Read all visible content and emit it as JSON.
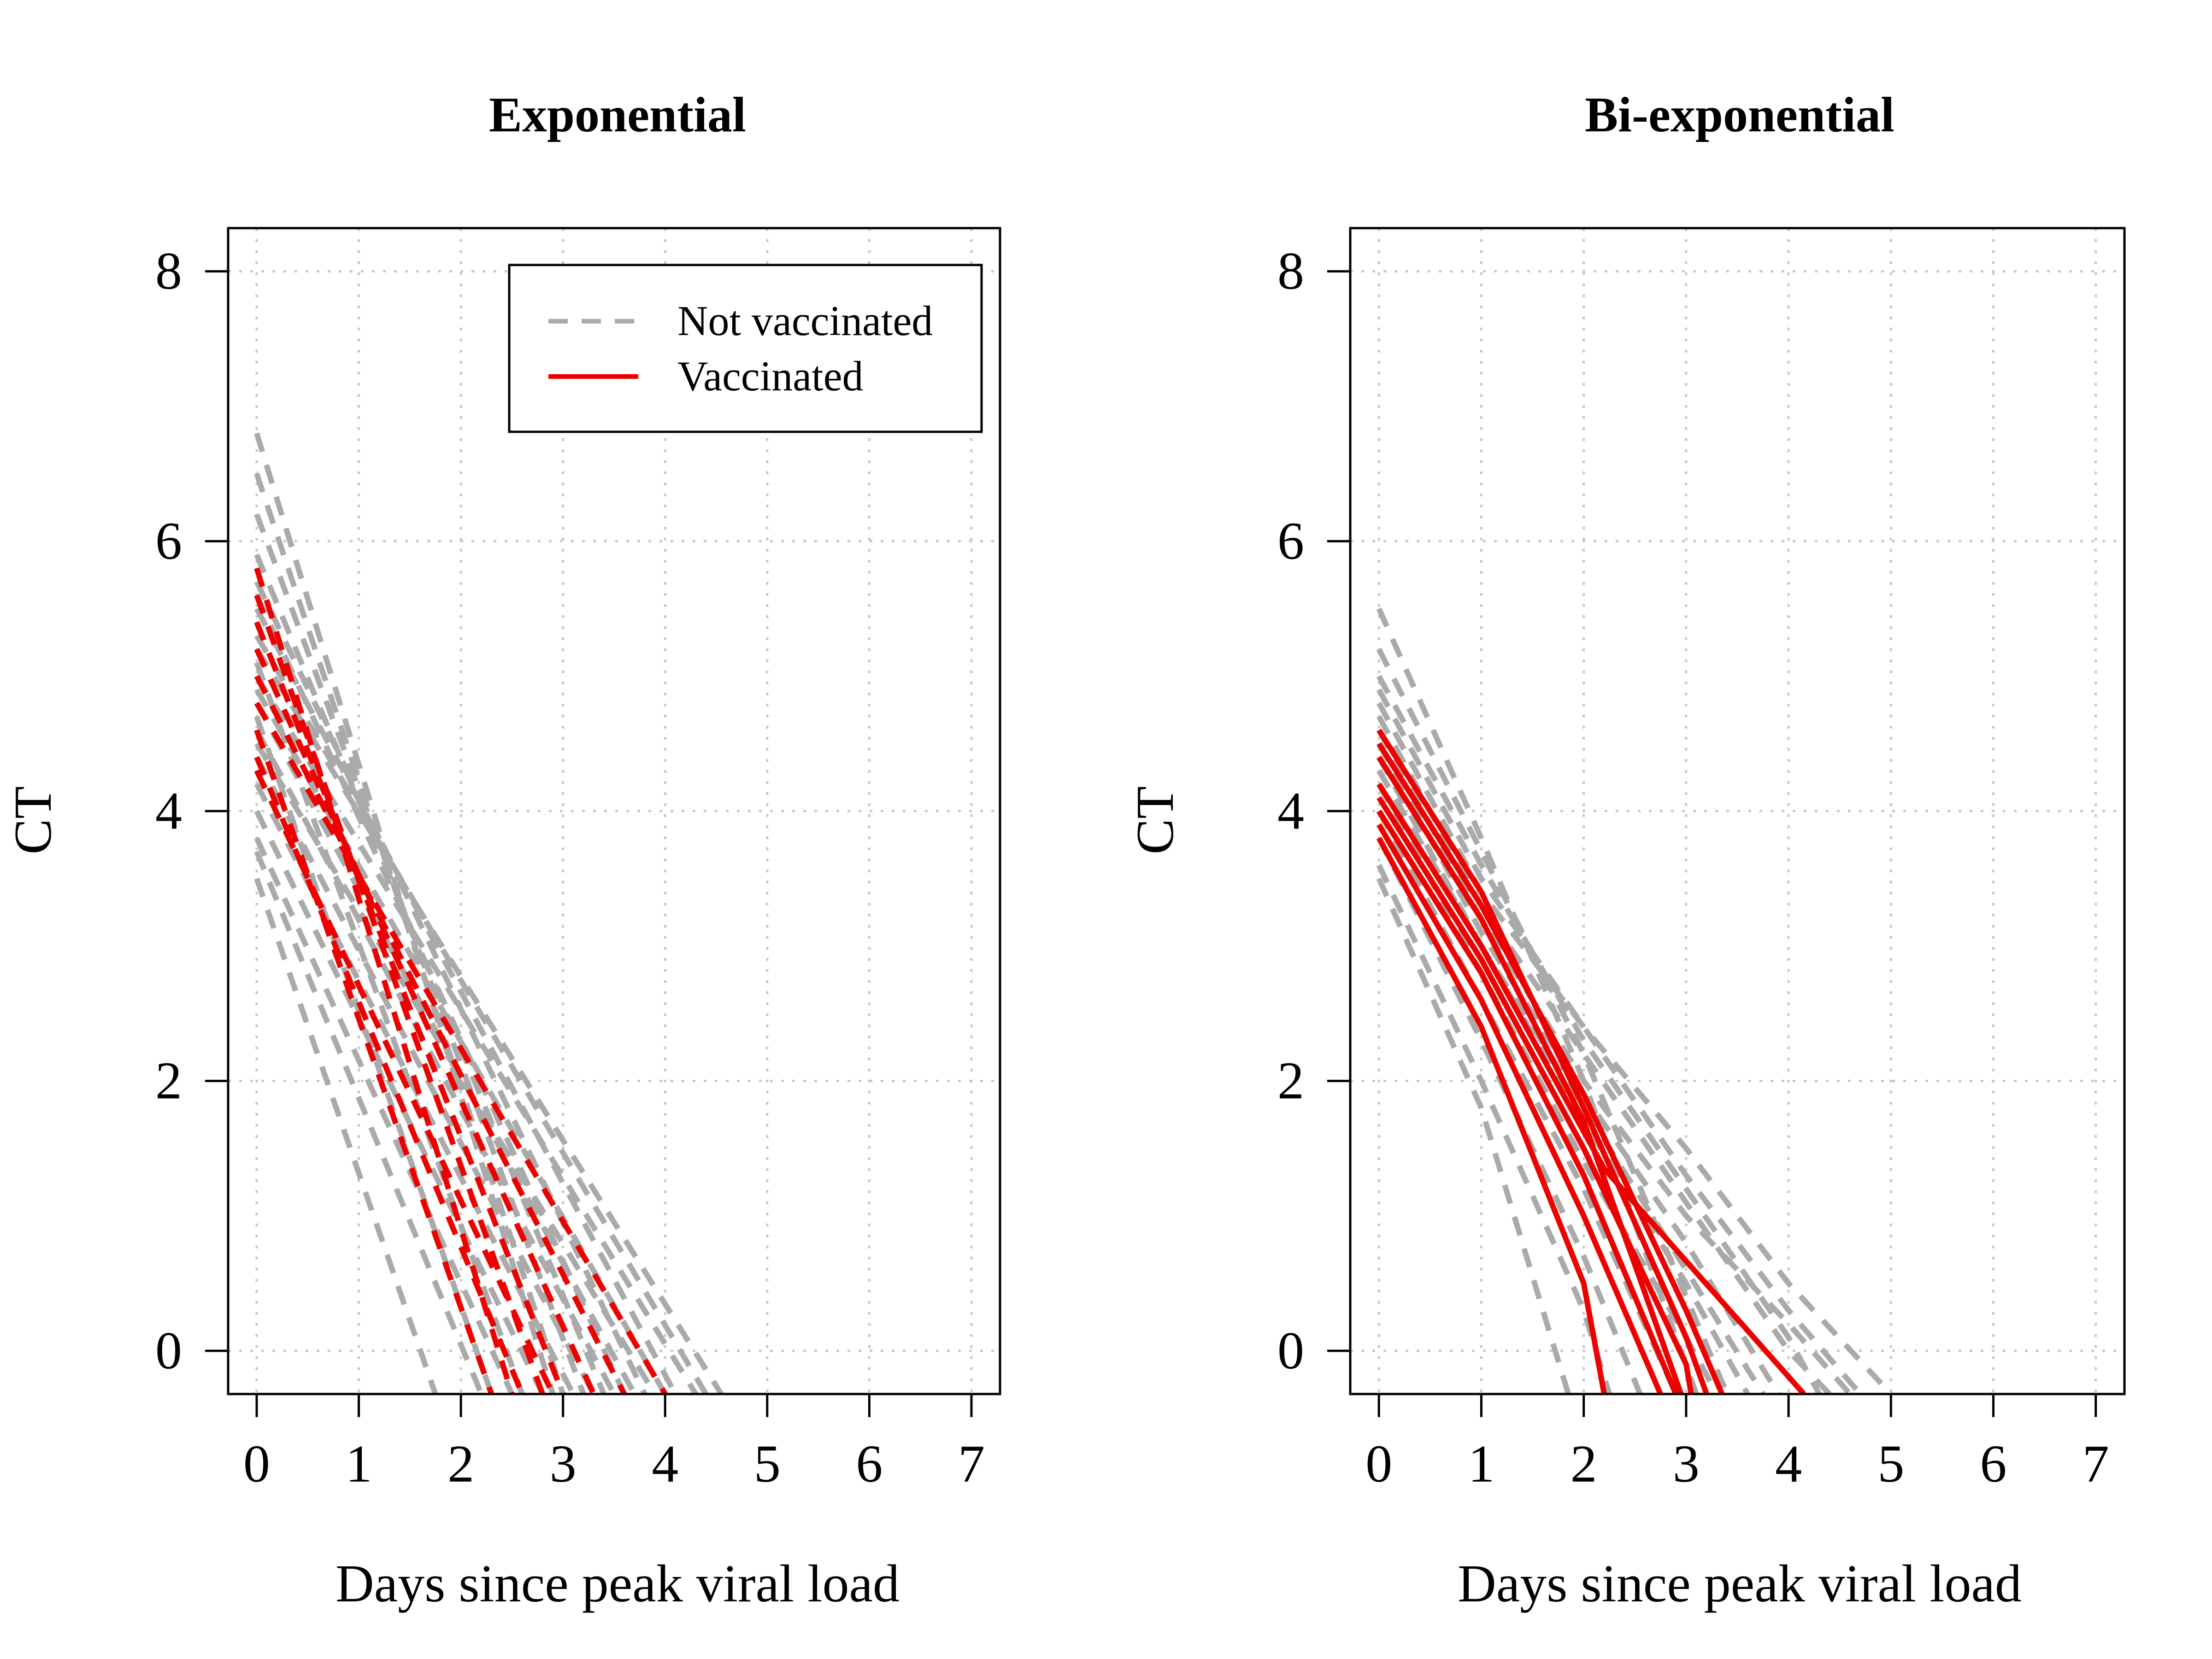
{
  "colors": {
    "not_vaccinated": "#aaaaaa",
    "vaccinated": "#ee0000",
    "grid": "#c8c8c8",
    "axis": "#000000"
  },
  "legend": {
    "placement": "top-right",
    "entries": [
      "Not vaccinated",
      "Vaccinated"
    ]
  },
  "chart_data": [
    {
      "type": "line",
      "title": "Exponential",
      "xlabel": "Days since peak viral load",
      "ylabel": "CT",
      "xlim": [
        -0.28,
        7.28
      ],
      "ylim": [
        -0.32,
        8.32
      ],
      "x_ticks": [
        0,
        1,
        2,
        3,
        4,
        5,
        6,
        7
      ],
      "y_ticks": [
        0,
        2,
        4,
        6,
        8
      ],
      "grid": true,
      "legend_in_panel": true,
      "series": [
        {
          "group": "not_vaccinated",
          "points": [
            [
              0,
              6.8
            ],
            [
              2.9,
              -0.32
            ]
          ]
        },
        {
          "group": "not_vaccinated",
          "points": [
            [
              0,
              6.5
            ],
            [
              3.0,
              -0.32
            ]
          ]
        },
        {
          "group": "not_vaccinated",
          "points": [
            [
              0,
              6.2
            ],
            [
              3.2,
              -0.32
            ]
          ]
        },
        {
          "group": "not_vaccinated",
          "points": [
            [
              0,
              5.9
            ],
            [
              3.4,
              -0.32
            ]
          ]
        },
        {
          "group": "not_vaccinated",
          "points": [
            [
              0,
              5.7
            ],
            [
              3.8,
              -0.32
            ]
          ]
        },
        {
          "group": "not_vaccinated",
          "points": [
            [
              0,
              5.5
            ],
            [
              4.1,
              -0.32
            ]
          ]
        },
        {
          "group": "not_vaccinated",
          "points": [
            [
              0,
              5.3
            ],
            [
              4.4,
              -0.32
            ]
          ]
        },
        {
          "group": "not_vaccinated",
          "points": [
            [
              0,
              5.2
            ],
            [
              4.55,
              -0.32
            ]
          ]
        },
        {
          "group": "not_vaccinated",
          "points": [
            [
              0,
              5.0
            ],
            [
              4.3,
              -0.32
            ]
          ]
        },
        {
          "group": "not_vaccinated",
          "points": [
            [
              0,
              4.9
            ],
            [
              4.0,
              -0.32
            ]
          ]
        },
        {
          "group": "not_vaccinated",
          "points": [
            [
              0,
              4.8
            ],
            [
              3.7,
              -0.32
            ]
          ]
        },
        {
          "group": "not_vaccinated",
          "points": [
            [
              0,
              4.6
            ],
            [
              3.5,
              -0.32
            ]
          ]
        },
        {
          "group": "not_vaccinated",
          "points": [
            [
              0,
              4.5
            ],
            [
              3.9,
              -0.32
            ]
          ]
        },
        {
          "group": "not_vaccinated",
          "points": [
            [
              0,
              4.4
            ],
            [
              3.3,
              -0.32
            ]
          ]
        },
        {
          "group": "not_vaccinated",
          "points": [
            [
              0,
              4.2
            ],
            [
              3.1,
              -0.32
            ]
          ]
        },
        {
          "group": "not_vaccinated",
          "points": [
            [
              0,
              4.0
            ],
            [
              2.8,
              -0.32
            ]
          ]
        },
        {
          "group": "not_vaccinated",
          "points": [
            [
              0,
              3.8
            ],
            [
              2.5,
              -0.32
            ]
          ]
        },
        {
          "group": "not_vaccinated",
          "points": [
            [
              0,
              3.7
            ],
            [
              2.2,
              -0.32
            ]
          ]
        },
        {
          "group": "not_vaccinated",
          "points": [
            [
              0,
              3.5
            ],
            [
              1.75,
              -0.32
            ]
          ]
        },
        {
          "group": "not_vaccinated",
          "points": [
            [
              0,
              5.1
            ],
            [
              2.6,
              -0.32
            ]
          ]
        },
        {
          "group": "not_vaccinated",
          "points": [
            [
              0,
              4.7
            ],
            [
              2.3,
              -0.32
            ]
          ]
        },
        {
          "group": "not_vaccinated",
          "points": [
            [
              0,
              5.6
            ],
            [
              3.6,
              -0.32
            ]
          ]
        },
        {
          "group": "vaccinated",
          "points": [
            [
              0,
              5.8
            ],
            [
              2.5,
              -0.32
            ]
          ]
        },
        {
          "group": "vaccinated",
          "points": [
            [
              0,
              5.6
            ],
            [
              2.8,
              -0.32
            ]
          ]
        },
        {
          "group": "vaccinated",
          "points": [
            [
              0,
              5.4
            ],
            [
              3.0,
              -0.32
            ]
          ]
        },
        {
          "group": "vaccinated",
          "points": [
            [
              0,
              5.2
            ],
            [
              3.3,
              -0.32
            ]
          ]
        },
        {
          "group": "vaccinated",
          "points": [
            [
              0,
              5.0
            ],
            [
              3.6,
              -0.32
            ]
          ]
        },
        {
          "group": "vaccinated",
          "points": [
            [
              0,
              4.8
            ],
            [
              4.0,
              -0.32
            ]
          ]
        },
        {
          "group": "vaccinated",
          "points": [
            [
              0,
              4.6
            ],
            [
              2.3,
              -0.32
            ]
          ]
        },
        {
          "group": "vaccinated",
          "points": [
            [
              0,
              4.4
            ],
            [
              2.6,
              -0.32
            ]
          ]
        },
        {
          "group": "vaccinated",
          "points": [
            [
              0,
              4.3
            ],
            [
              2.9,
              -0.32
            ]
          ]
        }
      ]
    },
    {
      "type": "line",
      "title": "Bi-exponential",
      "xlabel": "Days since peak viral load",
      "ylabel": "CT",
      "xlim": [
        -0.28,
        7.28
      ],
      "ylim": [
        -0.32,
        8.32
      ],
      "x_ticks": [
        0,
        1,
        2,
        3,
        4,
        5,
        6,
        7
      ],
      "y_ticks": [
        0,
        2,
        4,
        6,
        8
      ],
      "grid": true,
      "legend_in_panel": false,
      "series": [
        {
          "group": "not_vaccinated",
          "points": [
            [
              0,
              5.5
            ],
            [
              1.0,
              3.8
            ],
            [
              2.0,
              2.0
            ],
            [
              3.1,
              -0.32
            ]
          ]
        },
        {
          "group": "not_vaccinated",
          "points": [
            [
              0,
              5.2
            ],
            [
              1.0,
              3.7
            ],
            [
              2.0,
              2.2
            ],
            [
              3.4,
              -0.32
            ]
          ]
        },
        {
          "group": "not_vaccinated",
          "points": [
            [
              0,
              5.0
            ],
            [
              1.0,
              3.6
            ],
            [
              2.0,
              2.3
            ],
            [
              3.0,
              1.2
            ],
            [
              4.0,
              0.1
            ],
            [
              4.3,
              -0.32
            ]
          ]
        },
        {
          "group": "not_vaccinated",
          "points": [
            [
              0,
              4.9
            ],
            [
              1.0,
              3.5
            ],
            [
              2.0,
              2.4
            ],
            [
              3.0,
              1.3
            ],
            [
              4.0,
              0.3
            ],
            [
              4.7,
              -0.32
            ]
          ]
        },
        {
          "group": "not_vaccinated",
          "points": [
            [
              0,
              4.8
            ],
            [
              1.0,
              3.4
            ],
            [
              2.0,
              2.4
            ],
            [
              3.0,
              1.5
            ],
            [
              4.0,
              0.5
            ],
            [
              5.0,
              -0.32
            ]
          ]
        },
        {
          "group": "not_vaccinated",
          "points": [
            [
              0,
              4.7
            ],
            [
              1.0,
              3.3
            ],
            [
              2.0,
              2.2
            ],
            [
              3.0,
              1.1
            ],
            [
              4.0,
              0.0
            ],
            [
              4.4,
              -0.32
            ]
          ]
        },
        {
          "group": "not_vaccinated",
          "points": [
            [
              0,
              4.5
            ],
            [
              1.0,
              3.1
            ],
            [
              2.0,
              1.9
            ],
            [
              3.0,
              0.8
            ],
            [
              3.9,
              -0.32
            ]
          ]
        },
        {
          "group": "not_vaccinated",
          "points": [
            [
              0,
              4.4
            ],
            [
              1.0,
              3.0
            ],
            [
              2.0,
              1.7
            ],
            [
              3.0,
              0.5
            ],
            [
              3.6,
              -0.32
            ]
          ]
        },
        {
          "group": "not_vaccinated",
          "points": [
            [
              0,
              4.2
            ],
            [
              1.0,
              2.8
            ],
            [
              2.0,
              1.4
            ],
            [
              3.0,
              0.1
            ],
            [
              3.3,
              -0.32
            ]
          ]
        },
        {
          "group": "not_vaccinated",
          "points": [
            [
              0,
              4.0
            ],
            [
              1.0,
              2.6
            ],
            [
              2.0,
              1.2
            ],
            [
              2.9,
              -0.32
            ]
          ]
        },
        {
          "group": "not_vaccinated",
          "points": [
            [
              0,
              3.8
            ],
            [
              1.0,
              2.3
            ],
            [
              2.0,
              0.7
            ],
            [
              2.55,
              -0.32
            ]
          ]
        },
        {
          "group": "not_vaccinated",
          "points": [
            [
              0,
              3.6
            ],
            [
              1.0,
              2.0
            ],
            [
              2.0,
              0.3
            ],
            [
              2.25,
              -0.32
            ]
          ]
        },
        {
          "group": "not_vaccinated",
          "points": [
            [
              0,
              3.5
            ],
            [
              1.0,
              1.8
            ],
            [
              1.85,
              -0.32
            ]
          ]
        },
        {
          "group": "not_vaccinated",
          "points": [
            [
              0,
              4.6
            ],
            [
              1.0,
              3.2
            ],
            [
              2.0,
              2.0
            ],
            [
              3.0,
              1.0
            ],
            [
              4.0,
              0.2
            ],
            [
              4.6,
              -0.32
            ]
          ]
        },
        {
          "group": "not_vaccinated",
          "points": [
            [
              0,
              4.3
            ],
            [
              1.0,
              3.0
            ],
            [
              2.0,
              1.8
            ],
            [
              3.0,
              0.6
            ],
            [
              3.75,
              -0.32
            ]
          ]
        },
        {
          "group": "vaccinated",
          "points": [
            [
              0,
              4.6
            ],
            [
              1.0,
              3.4
            ],
            [
              2.0,
              1.8
            ],
            [
              3.0,
              0.1
            ],
            [
              3.2,
              -0.32
            ]
          ]
        },
        {
          "group": "vaccinated",
          "points": [
            [
              0,
              4.5
            ],
            [
              1.0,
              3.3
            ],
            [
              2.0,
              1.9
            ],
            [
              3.0,
              0.3
            ],
            [
              3.35,
              -0.32
            ]
          ]
        },
        {
          "group": "vaccinated",
          "points": [
            [
              0,
              4.4
            ],
            [
              1.0,
              3.2
            ],
            [
              2.0,
              1.7
            ],
            [
              2.95,
              -0.32
            ]
          ]
        },
        {
          "group": "vaccinated",
          "points": [
            [
              0,
              4.2
            ],
            [
              1.0,
              3.0
            ],
            [
              2.2,
              1.35
            ],
            [
              4.15,
              -0.32
            ]
          ]
        },
        {
          "group": "vaccinated",
          "points": [
            [
              0,
              4.0
            ],
            [
              1.0,
              2.8
            ],
            [
              2.0,
              1.3
            ],
            [
              2.9,
              -0.32
            ]
          ]
        },
        {
          "group": "vaccinated",
          "points": [
            [
              0,
              3.9
            ],
            [
              1.0,
              2.6
            ],
            [
              2.0,
              1.0
            ],
            [
              2.75,
              -0.32
            ]
          ]
        },
        {
          "group": "vaccinated",
          "points": [
            [
              0,
              3.8
            ],
            [
              1.0,
              2.4
            ],
            [
              2.0,
              0.5
            ],
            [
              2.2,
              -0.32
            ]
          ]
        },
        {
          "group": "vaccinated",
          "points": [
            [
              0,
              4.1
            ],
            [
              1.0,
              2.9
            ],
            [
              2.0,
              1.5
            ],
            [
              3.0,
              -0.1
            ],
            [
              3.05,
              -0.32
            ]
          ]
        }
      ]
    }
  ]
}
